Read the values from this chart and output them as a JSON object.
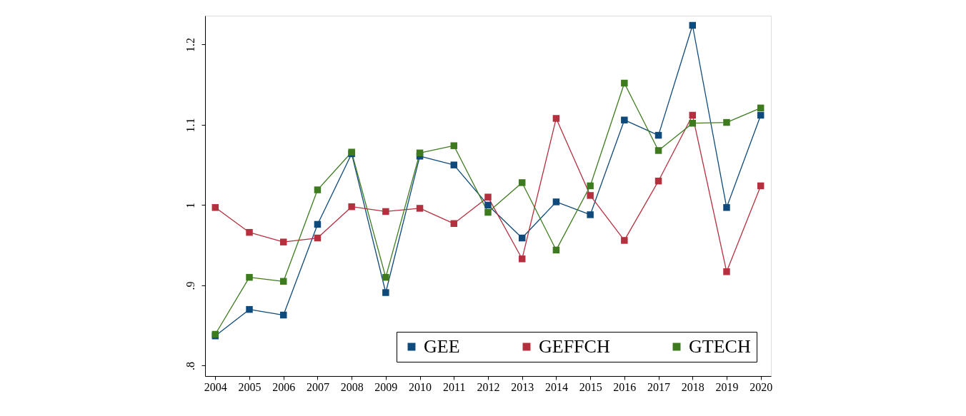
{
  "chart_data": {
    "type": "line",
    "x": [
      2004,
      2005,
      2006,
      2007,
      2008,
      2009,
      2010,
      2011,
      2012,
      2013,
      2014,
      2015,
      2016,
      2017,
      2018,
      2019,
      2020
    ],
    "series": [
      {
        "name": "GEE",
        "color": "#0e4a7b",
        "values": [
          0.837,
          0.87,
          0.863,
          0.976,
          1.064,
          0.891,
          1.061,
          1.05,
          1.0,
          0.959,
          1.004,
          0.988,
          1.106,
          1.087,
          1.224,
          0.997,
          1.112
        ]
      },
      {
        "name": "GEFFCH",
        "color": "#b4303f",
        "values": [
          0.997,
          0.966,
          0.954,
          0.959,
          0.998,
          0.992,
          0.996,
          0.977,
          1.01,
          0.933,
          1.108,
          1.012,
          0.956,
          1.03,
          1.112,
          0.917,
          1.024
        ]
      },
      {
        "name": "GTECH",
        "color": "#3e7b1f",
        "values": [
          0.839,
          0.91,
          0.905,
          1.019,
          1.066,
          0.91,
          1.065,
          1.074,
          0.991,
          1.028,
          0.944,
          1.024,
          1.152,
          1.068,
          1.102,
          1.103,
          1.121
        ]
      }
    ],
    "xlim": [
      2003.7,
      2020.3
    ],
    "xticks": [
      2004,
      2005,
      2006,
      2007,
      2008,
      2009,
      2010,
      2011,
      2012,
      2013,
      2014,
      2015,
      2016,
      2017,
      2018,
      2019,
      2020
    ],
    "ylim": [
      0.787,
      1.236
    ],
    "yticks": [
      {
        "value": 0.8,
        "label": ".8"
      },
      {
        "value": 0.9,
        "label": ".9"
      },
      1,
      1.1,
      1.2
    ],
    "grid": false,
    "legend": "bottom right",
    "marker": "square",
    "line_style": "solid"
  }
}
